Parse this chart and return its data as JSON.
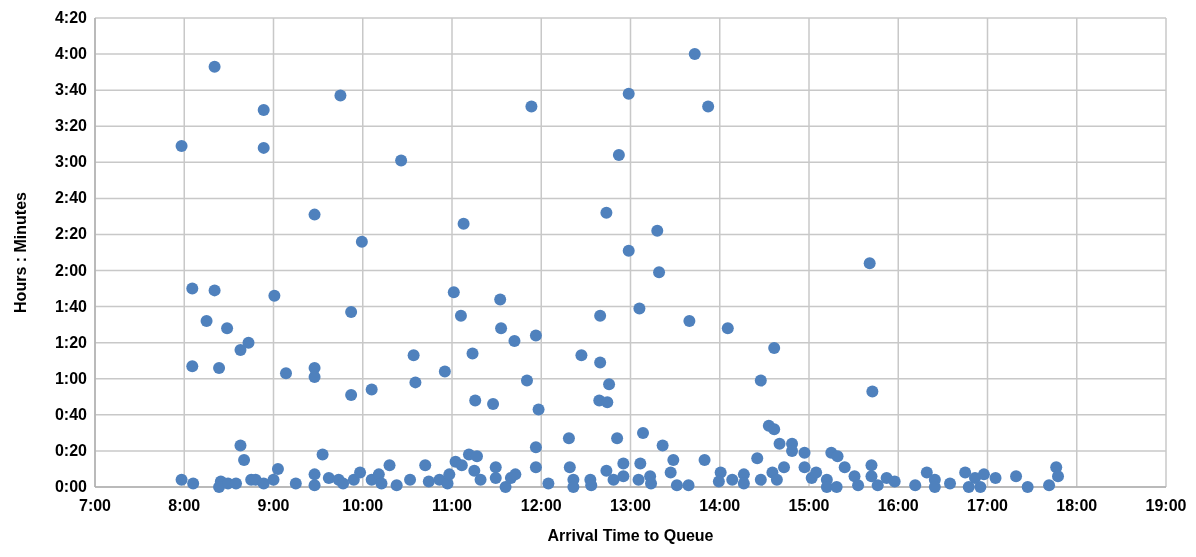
{
  "chart_data": {
    "type": "scatter",
    "xlabel": "Arrival Time to Queue",
    "ylabel": "Hours : Minutes",
    "xlim": [
      7,
      19
    ],
    "xticks": [
      {
        "value": 7,
        "label": "7:00"
      },
      {
        "value": 8,
        "label": "8:00"
      },
      {
        "value": 9,
        "label": "9:00"
      },
      {
        "value": 10,
        "label": "10:00"
      },
      {
        "value": 11,
        "label": "11:00"
      },
      {
        "value": 12,
        "label": "12:00"
      },
      {
        "value": 13,
        "label": "13:00"
      },
      {
        "value": 14,
        "label": "14:00"
      },
      {
        "value": 15,
        "label": "15:00"
      },
      {
        "value": 16,
        "label": "16:00"
      },
      {
        "value": 17,
        "label": "17:00"
      },
      {
        "value": 18,
        "label": "18:00"
      },
      {
        "value": 19,
        "label": "19:00"
      }
    ],
    "ylim": [
      0,
      260
    ],
    "yticks": [
      {
        "value": 0,
        "label": "0:00"
      },
      {
        "value": 20,
        "label": "0:20"
      },
      {
        "value": 40,
        "label": "0:40"
      },
      {
        "value": 60,
        "label": "1:00"
      },
      {
        "value": 80,
        "label": "1:20"
      },
      {
        "value": 100,
        "label": "1:40"
      },
      {
        "value": 120,
        "label": "2:00"
      },
      {
        "value": 140,
        "label": "2:20"
      },
      {
        "value": 160,
        "label": "2:40"
      },
      {
        "value": 180,
        "label": "3:00"
      },
      {
        "value": 200,
        "label": "3:20"
      },
      {
        "value": 220,
        "label": "3:40"
      },
      {
        "value": 240,
        "label": "4:00"
      },
      {
        "value": 260,
        "label": "4:20"
      }
    ],
    "grid": true,
    "marker": "circle",
    "series": [
      {
        "color": "#4f81bd",
        "x": [
          7.97,
          8.09,
          8.34,
          8.34,
          8.09,
          8.25,
          8.39,
          8.48,
          8.63,
          8.72,
          8.63,
          8.67,
          8.89,
          8.89,
          9.01,
          9.14,
          9.46,
          9.46,
          9.46,
          9.55,
          9.75,
          9.87,
          9.87,
          9.99,
          10.1,
          10.43,
          10.57,
          10.59,
          10.92,
          11.02,
          11.1,
          11.13,
          11.23,
          11.26,
          11.46,
          11.54,
          11.55,
          11.7,
          11.84,
          11.89,
          11.94,
          11.97,
          12.45,
          12.66,
          12.66,
          12.65,
          12.74,
          12.76,
          12.85,
          12.87,
          12.73,
          12.98,
          12.98,
          13.1,
          13.14,
          13.3,
          13.32,
          13.36,
          13.66,
          13.72,
          13.87,
          14.09,
          14.46,
          14.61,
          15.68,
          15.71,
          7.97,
          8.1,
          8.41,
          8.39,
          8.49,
          8.58,
          8.75,
          8.8,
          8.89,
          9.0,
          9.05,
          9.25,
          9.46,
          9.46,
          9.62,
          9.73,
          9.78,
          9.9,
          9.97,
          10.1,
          10.18,
          10.21,
          10.3,
          10.38,
          10.53,
          10.7,
          10.74,
          10.86,
          10.95,
          10.97,
          11.04,
          11.11,
          11.19,
          11.28,
          11.25,
          11.32,
          11.49,
          11.49,
          11.6,
          11.66,
          11.71,
          11.94,
          11.94,
          12.08,
          12.31,
          12.32,
          12.36,
          12.36,
          12.55,
          12.56,
          12.73,
          12.81,
          12.92,
          12.92,
          13.09,
          13.11,
          13.22,
          13.23,
          13.45,
          13.48,
          13.52,
          13.65,
          13.83,
          14.01,
          13.99,
          14.14,
          14.27,
          14.27,
          14.42,
          14.46,
          14.59,
          14.64,
          14.72,
          14.55,
          14.61,
          14.67,
          14.81,
          14.81,
          14.95,
          14.95,
          15.03,
          15.08,
          15.2,
          15.2,
          15.25,
          15.32,
          15.31,
          15.4,
          15.51,
          15.55,
          15.7,
          15.7,
          15.77,
          15.87,
          15.96,
          16.19,
          16.32,
          16.41,
          16.41,
          16.58,
          16.75,
          16.79,
          16.86,
          16.92,
          16.96,
          17.09,
          17.32,
          17.45,
          17.69,
          17.77,
          17.79
        ],
        "values": [
          189,
          110,
          109,
          233,
          67,
          92,
          66,
          88,
          76,
          80,
          23,
          15,
          209,
          188,
          106,
          63,
          151,
          66,
          61,
          18,
          217,
          51,
          97,
          136,
          54,
          181,
          73,
          58,
          64,
          108,
          95,
          146,
          74,
          48,
          46,
          104,
          88,
          81,
          59,
          211,
          84,
          43,
          73,
          69,
          95,
          48,
          47,
          57,
          27,
          184,
          152,
          218,
          131,
          99,
          30,
          142,
          119,
          23,
          92,
          240,
          211,
          88,
          59,
          77,
          124,
          53,
          4,
          2,
          3,
          0,
          2,
          2,
          4,
          4,
          2,
          4,
          10,
          2,
          7,
          1,
          5,
          4,
          2,
          4,
          8,
          4,
          7,
          2,
          12,
          1,
          4,
          12,
          3,
          4,
          2,
          7,
          14,
          12,
          18,
          17,
          9,
          4,
          11,
          5,
          0,
          5,
          7,
          22,
          11,
          2,
          27,
          11,
          4,
          0,
          4,
          1,
          9,
          4,
          13,
          6,
          4,
          13,
          6,
          2,
          8,
          15,
          1,
          1,
          15,
          8,
          3,
          4,
          7,
          2,
          16,
          4,
          8,
          4,
          11,
          34,
          32,
          24,
          24,
          20,
          19,
          11,
          5,
          8,
          4,
          0,
          19,
          17,
          0,
          11,
          6,
          1,
          12,
          6,
          1,
          5,
          3,
          1,
          8,
          4,
          0,
          2,
          8,
          0,
          5,
          0,
          7,
          5,
          6,
          0,
          1,
          11,
          6
        ]
      }
    ]
  }
}
